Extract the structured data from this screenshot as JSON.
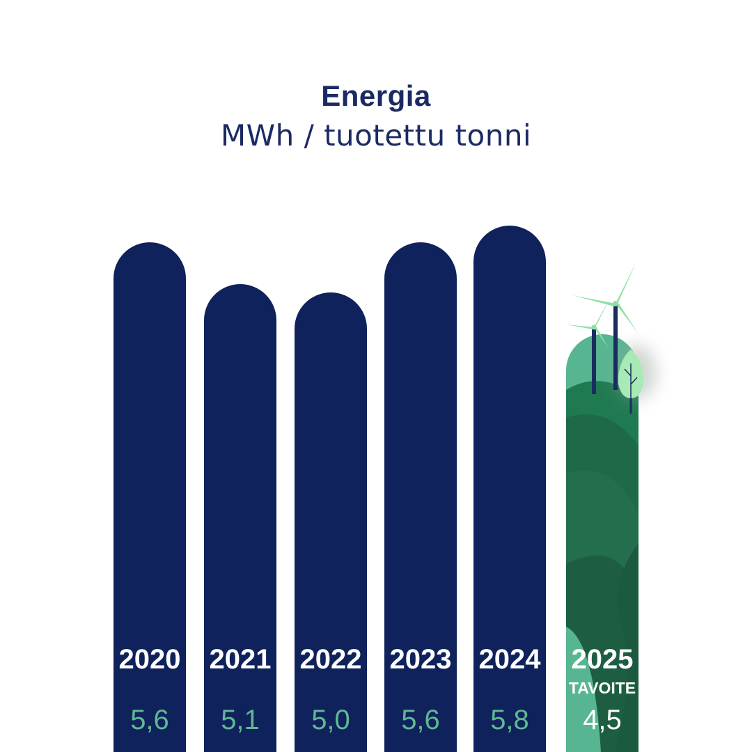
{
  "chart_data": {
    "type": "bar",
    "title": "Energia",
    "subtitle": "MWh / tuotettu tonni",
    "categories": [
      "2020",
      "2021",
      "2022",
      "2023",
      "2024",
      "2025"
    ],
    "values": [
      5.6,
      5.1,
      5.0,
      5.6,
      5.8,
      4.5
    ],
    "value_labels": [
      "5,6",
      "5,1",
      "5,0",
      "5,6",
      "5,8",
      "4,5"
    ],
    "target_index": 5,
    "target_label": "TAVOITE",
    "target_illustration": "wind-turbines-tree-hills",
    "colors": {
      "bar": "#10225c",
      "value_text": "#5fb894",
      "target_value_text": "#ffffff",
      "title_text": "#1c2a63",
      "target_green_dark": "#1e6a48",
      "target_green_mid": "#2f8a5f",
      "target_green_light": "#58b591"
    }
  }
}
